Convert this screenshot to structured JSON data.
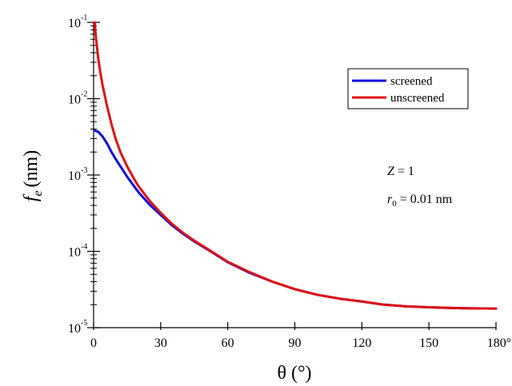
{
  "chart_data": {
    "type": "line",
    "xlabel": "θ (°)",
    "ylabel": "f_e (nm)",
    "ylabel_main": "f",
    "ylabel_sub": "e",
    "ylabel_unit": "(nm)",
    "y_scale": "log",
    "xlim": [
      0,
      180
    ],
    "ylim": [
      1e-05,
      0.1
    ],
    "x_ticks": [
      0,
      30,
      60,
      90,
      120,
      150,
      180
    ],
    "x_tick_labels": [
      "0",
      "30",
      "60",
      "90",
      "120",
      "150",
      "180°"
    ],
    "y_ticks": [
      {
        "value": 1e-05,
        "base": "10",
        "exp": "-5"
      },
      {
        "value": 0.0001,
        "base": "10",
        "exp": "-4"
      },
      {
        "value": 0.001,
        "base": "10",
        "exp": "-3"
      },
      {
        "value": 0.01,
        "base": "10",
        "exp": "-2"
      },
      {
        "value": 0.1,
        "base": "10",
        "exp": "-1"
      }
    ],
    "grid": false,
    "legend_position": "top-right",
    "series": [
      {
        "name": "screened",
        "color": "#1010e0",
        "x": [
          0.5,
          2,
          4,
          6,
          8,
          10,
          12,
          15,
          18,
          20,
          25,
          30,
          35,
          40,
          45,
          50,
          60,
          70,
          80,
          90,
          100,
          110,
          120,
          130,
          140,
          150,
          160,
          170,
          180
        ],
        "y": [
          0.0038,
          0.0037,
          0.0032,
          0.0026,
          0.002,
          0.0016,
          0.0013,
          0.00095,
          0.00072,
          0.0006,
          0.00041,
          0.0003,
          0.00022,
          0.00017,
          0.000135,
          0.00011,
          7.2e-05,
          5.2e-05,
          4e-05,
          3.2e-05,
          2.7e-05,
          2.4e-05,
          2.2e-05,
          2e-05,
          1.9e-05,
          1.85e-05,
          1.81e-05,
          1.79e-05,
          1.78e-05
        ]
      },
      {
        "name": "unscreened",
        "color": "#e01010",
        "x": [
          0.5,
          1,
          2,
          3,
          4,
          5,
          6,
          8,
          10,
          12,
          15,
          18,
          20,
          25,
          30,
          35,
          40,
          45,
          50,
          60,
          70,
          80,
          90,
          100,
          110,
          120,
          130,
          140,
          150,
          160,
          170,
          180
        ],
        "y": [
          0.1,
          0.065,
          0.035,
          0.022,
          0.015,
          0.011,
          0.008,
          0.0046,
          0.0029,
          0.002,
          0.0013,
          0.0009,
          0.00072,
          0.00046,
          0.00032,
          0.00023,
          0.000175,
          0.000138,
          0.000112,
          7.3e-05,
          5.3e-05,
          4e-05,
          3.2e-05,
          2.7e-05,
          2.4e-05,
          2.2e-05,
          2e-05,
          1.9e-05,
          1.85e-05,
          1.81e-05,
          1.79e-05,
          1.78e-05
        ]
      }
    ],
    "annotations": [
      {
        "symbol": "Z",
        "text": " = 1"
      },
      {
        "symbol": "r",
        "sub": "0",
        "text": " = 0.01 nm"
      }
    ]
  }
}
